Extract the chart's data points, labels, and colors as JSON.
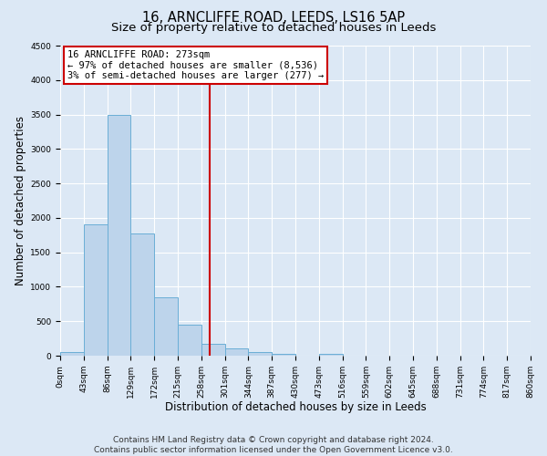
{
  "title": "16, ARNCLIFFE ROAD, LEEDS, LS16 5AP",
  "subtitle": "Size of property relative to detached houses in Leeds",
  "xlabel": "Distribution of detached houses by size in Leeds",
  "ylabel": "Number of detached properties",
  "bar_values": [
    50,
    1900,
    3500,
    1780,
    850,
    450,
    175,
    100,
    55,
    30,
    0,
    30,
    0,
    0,
    0,
    0,
    0,
    0,
    0,
    0
  ],
  "bin_edges": [
    0,
    43,
    86,
    129,
    172,
    215,
    258,
    301,
    344,
    387,
    430,
    473,
    516,
    559,
    602,
    645,
    688,
    731,
    774,
    817,
    860
  ],
  "tick_labels": [
    "0sqm",
    "43sqm",
    "86sqm",
    "129sqm",
    "172sqm",
    "215sqm",
    "258sqm",
    "301sqm",
    "344sqm",
    "387sqm",
    "430sqm",
    "473sqm",
    "516sqm",
    "559sqm",
    "602sqm",
    "645sqm",
    "688sqm",
    "731sqm",
    "774sqm",
    "817sqm",
    "860sqm"
  ],
  "bar_color": "#bdd4eb",
  "bar_edgecolor": "#6aaed6",
  "vline_x": 273,
  "vline_color": "#cc0000",
  "annotation_title": "16 ARNCLIFFE ROAD: 273sqm",
  "annotation_line1": "← 97% of detached houses are smaller (8,536)",
  "annotation_line2": "3% of semi-detached houses are larger (277) →",
  "annotation_box_edgecolor": "#cc0000",
  "ylim": [
    0,
    4500
  ],
  "yticks": [
    0,
    500,
    1000,
    1500,
    2000,
    2500,
    3000,
    3500,
    4000,
    4500
  ],
  "footer1": "Contains HM Land Registry data © Crown copyright and database right 2024.",
  "footer2": "Contains public sector information licensed under the Open Government Licence v3.0.",
  "background_color": "#dce8f5",
  "plot_bg_color": "#dce8f5",
  "title_fontsize": 10.5,
  "subtitle_fontsize": 9.5,
  "axis_label_fontsize": 8.5,
  "tick_fontsize": 6.5,
  "annotation_fontsize": 7.5,
  "footer_fontsize": 6.5
}
